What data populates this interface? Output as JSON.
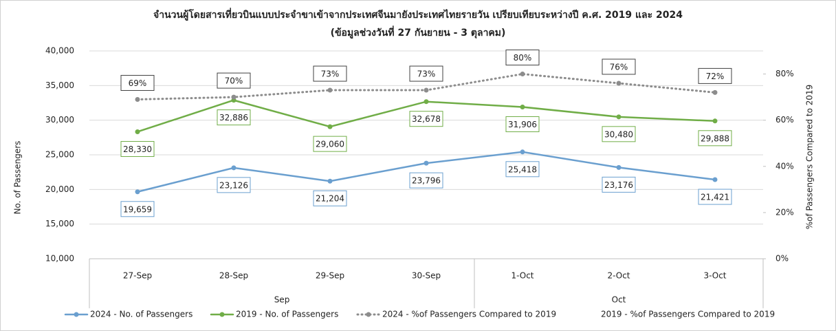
{
  "chart_data": {
    "type": "line",
    "title": "จำนวนผู้โดยสารเที่ยวบินแบบประจำขาเข้าจากประเทศจีนมายังประเทศไทยรายวัน  เปรียบเทียบระหว่างปี  ค.ศ. 2019 และ 2024",
    "subtitle": "(ข้อมูลช่วงวันที่ 27 กันยายน - 3 ตุลาคม)",
    "categories": [
      "27-Sep",
      "28-Sep",
      "29-Sep",
      "30-Sep",
      "1-Oct",
      "2-Oct",
      "3-Oct"
    ],
    "category_groups": [
      "Sep",
      "Sep",
      "Sep",
      "Sep",
      "Oct",
      "Oct",
      "Oct"
    ],
    "ylabel": "No. of Passengers",
    "y2label": "%of Passengers Compared to 2019",
    "ylim": [
      10000,
      40000
    ],
    "yticks": [
      {
        "value": 10000,
        "label": "10,000"
      },
      {
        "value": 15000,
        "label": "15,000"
      },
      {
        "value": 20000,
        "label": "20,000"
      },
      {
        "value": 25000,
        "label": "25,000"
      },
      {
        "value": 30000,
        "label": "30,000"
      },
      {
        "value": 35000,
        "label": "35,000"
      },
      {
        "value": 40000,
        "label": "40,000"
      }
    ],
    "y2lim": [
      0,
      90
    ],
    "y2ticks": [
      {
        "value": 0,
        "label": "0%"
      },
      {
        "value": 20,
        "label": "20%"
      },
      {
        "value": 40,
        "label": "40%"
      },
      {
        "value": 60,
        "label": "60%"
      },
      {
        "value": 80,
        "label": "80%"
      }
    ],
    "grid": true,
    "legend": "bottom",
    "series": [
      {
        "name": "2024 - No. of Passengers",
        "color": "#6a9fcf",
        "style": "solid",
        "label_position": "below",
        "values": [
          19659,
          23126,
          21204,
          23796,
          25418,
          23176,
          21421
        ],
        "value_labels": [
          "19,659",
          "23,126",
          "21,204",
          "23,796",
          "25,418",
          "23,176",
          "21,421"
        ]
      },
      {
        "name": "2019 - No. of Passengers",
        "color": "#70ad47",
        "style": "solid",
        "label_position": "below",
        "values": [
          28330,
          32886,
          29060,
          32678,
          31906,
          30480,
          29888
        ],
        "value_labels": [
          "28,330",
          "32,886",
          "29,060",
          "32,678",
          "31,906",
          "30,480",
          "29,888"
        ]
      },
      {
        "name": "2024 - %of Passengers Compared to 2019",
        "color": "#8c8c8c",
        "style": "dotted",
        "axis": "y2",
        "label_position": "above",
        "values": [
          69,
          70,
          73,
          73,
          80,
          76,
          72
        ],
        "value_labels": [
          "69%",
          "70%",
          "73%",
          "73%",
          "80%",
          "76%",
          "72%"
        ]
      },
      {
        "name": "2019 - %of Passengers Compared to 2019",
        "color": "#ffffff",
        "style": "none",
        "axis": "y2",
        "values": [
          null,
          null,
          null,
          null,
          null,
          null,
          null
        ]
      }
    ]
  }
}
